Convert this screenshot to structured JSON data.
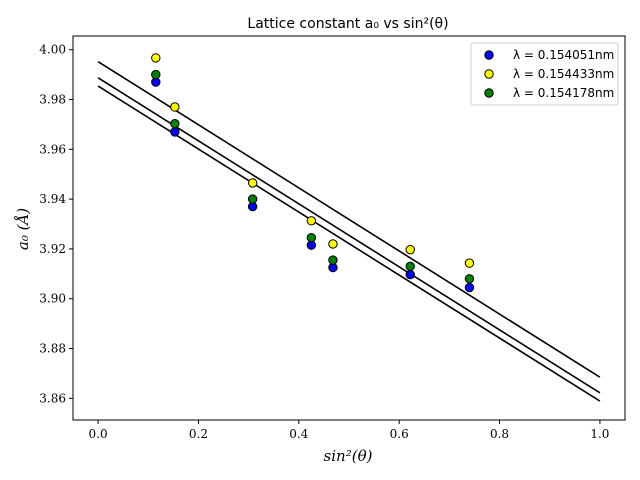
{
  "chart_data": {
    "type": "scatter",
    "title": "Lattice constant a₀ vs sin²(θ)",
    "xlabel": "sin²(θ)",
    "ylabel": "a₀ (Å)",
    "xlim": [
      -0.05,
      1.05
    ],
    "ylim": [
      3.8513,
      4.0055
    ],
    "xticks": [
      0.0,
      0.2,
      0.4,
      0.6,
      0.8,
      1.0
    ],
    "xtick_labels": [
      "0.0",
      "0.2",
      "0.4",
      "0.6",
      "0.8",
      "1.0"
    ],
    "yticks": [
      3.86,
      3.88,
      3.9,
      3.92,
      3.94,
      3.96,
      3.98,
      4.0
    ],
    "ytick_labels": [
      "3.86",
      "3.88",
      "3.90",
      "3.92",
      "3.94",
      "3.96",
      "3.98",
      "4.00"
    ],
    "grid": false,
    "legend_position": "top-right",
    "series": [
      {
        "name": "λ = 0.154051nm",
        "color": "#0000ff",
        "x": [
          0.115,
          0.153,
          0.308,
          0.425,
          0.468,
          0.622,
          0.74
        ],
        "y": [
          3.987,
          3.967,
          3.937,
          3.9215,
          3.9125,
          3.9097,
          3.9045
        ],
        "fit": {
          "x": [
            0.0,
            1.0
          ],
          "y": [
            3.9854,
            3.8589
          ]
        }
      },
      {
        "name": "λ = 0.154433nm",
        "color": "#ffff00",
        "x": [
          0.115,
          0.153,
          0.308,
          0.425,
          0.468,
          0.622,
          0.74
        ],
        "y": [
          3.9967,
          3.977,
          3.9465,
          3.9313,
          3.922,
          3.9197,
          3.9143
        ],
        "fit": {
          "x": [
            0.0,
            1.0
          ],
          "y": [
            3.9952,
            3.8685
          ]
        }
      },
      {
        "name": "λ = 0.154178nm",
        "color": "#008000",
        "x": [
          0.115,
          0.153,
          0.308,
          0.425,
          0.468,
          0.622,
          0.74
        ],
        "y": [
          3.99,
          3.9703,
          3.94,
          3.9245,
          3.9155,
          3.913,
          3.908
        ],
        "fit": {
          "x": [
            0.0,
            1.0
          ],
          "y": [
            3.9887,
            3.8622
          ]
        }
      }
    ]
  }
}
